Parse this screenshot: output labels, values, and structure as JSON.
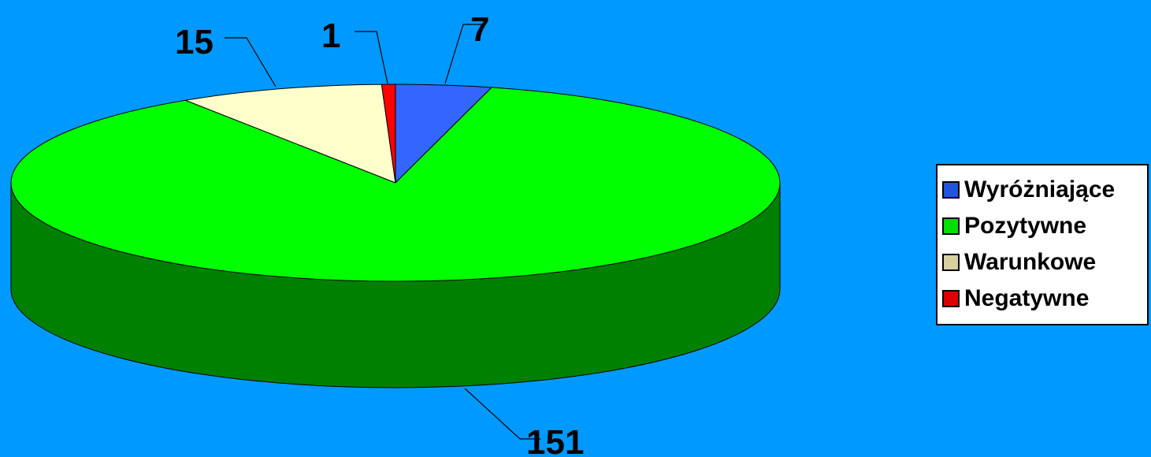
{
  "chart_data": {
    "type": "pie",
    "style": "3d",
    "categories": [
      "Wyróżniające",
      "Pozytywne",
      "Warunkowe",
      "Negatywne"
    ],
    "values": [
      7,
      151,
      15,
      1
    ],
    "data_labels": [
      "7",
      "151",
      "15",
      "1"
    ],
    "colors": {
      "Wyróżniające": "#3366ff",
      "Pozytywne": "#00ff00",
      "Warunkowe": "#ffffcc",
      "Negatywne": "#ff0000"
    },
    "side_colors": {
      "Wyróżniające": "#1a33aa",
      "Pozytywne": "#008000",
      "Warunkowe": "#9a8a60",
      "Negatywne": "#aa0000"
    },
    "legend_position": "right",
    "background": "#0099ff"
  },
  "legend": {
    "items": [
      {
        "label": "Wyróżniające",
        "swatch": "#2255dd"
      },
      {
        "label": "Pozytywne",
        "swatch": "#00e000"
      },
      {
        "label": "Warunkowe",
        "swatch": "#d8d0a0"
      },
      {
        "label": "Negatywne",
        "swatch": "#dd0000"
      }
    ]
  }
}
